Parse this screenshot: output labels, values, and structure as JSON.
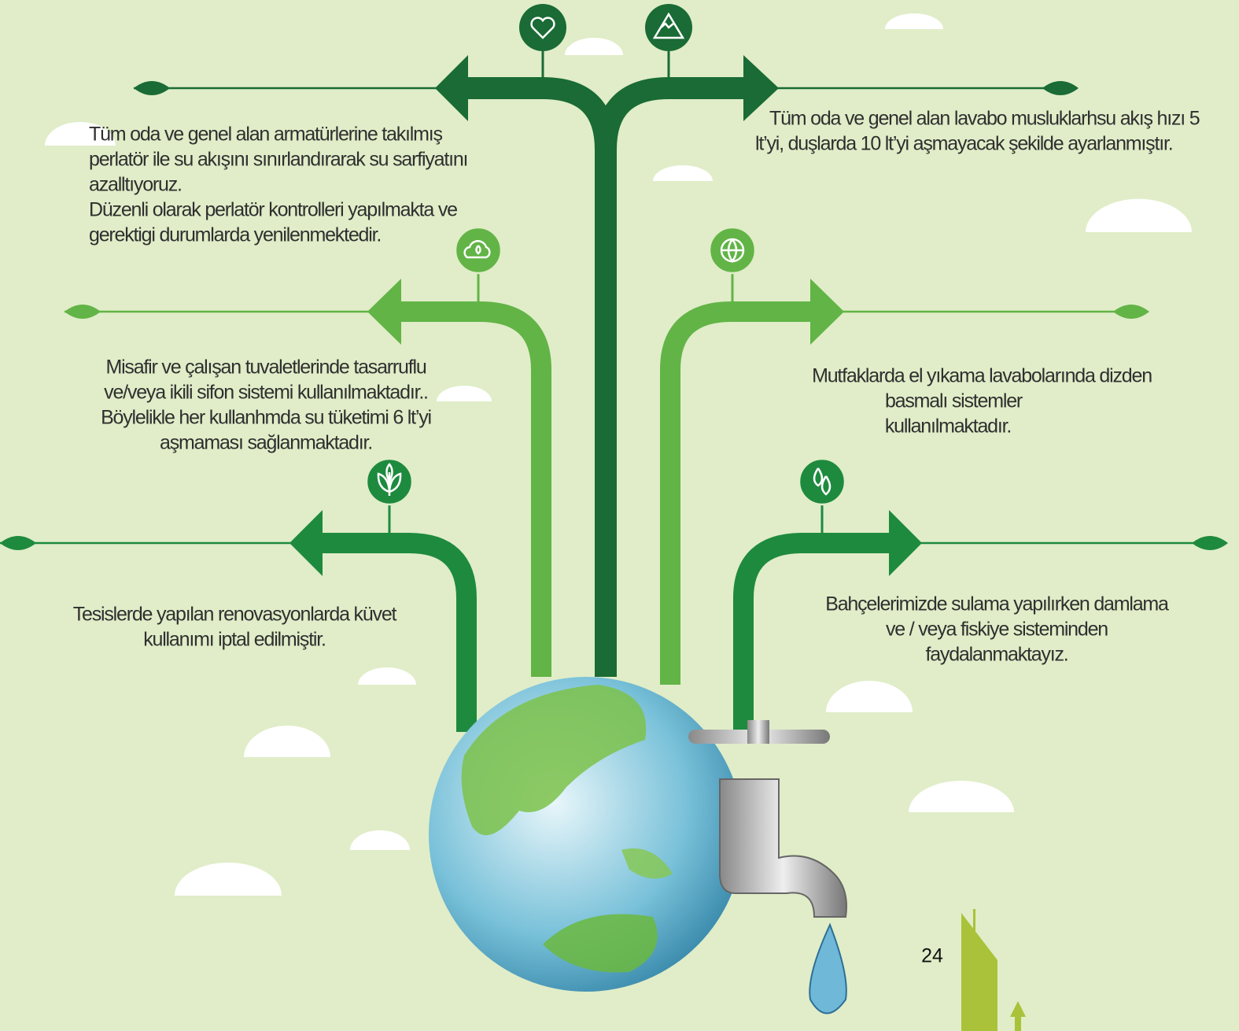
{
  "blocks": [
    {
      "lines": [
        "Tüm oda ve genel alan armatürlerine takılmış",
        "perlatör ile su akışını sınırlandırarak su sarfiyatını",
        "azalltıyoruz.",
        "Düzenli olarak perlatör kontrolleri yapılmakta ve",
        "gerektigi durumlarda yenilenmektedir."
      ]
    },
    {
      "lines": [
        "Tüm oda ve genel alan lavabo musluklarhsu akış hızı 5",
        "lt’yi, duşlarda 10 lt’yi aşmayacak şekilde ayarlanmıştır."
      ]
    },
    {
      "lines": [
        "Misafir ve çalışan tuvaletlerinde tasarruflu",
        "ve/veya ikili sifon sistemi kullanılmaktadır..",
        "Böylelikle her kullanhmda su tüketimi 6 lt’yi",
        "aşmaması sağlanmaktadır."
      ]
    },
    {
      "lines": [
        "Mutfaklarda el yıkama lavabolarında dizden",
        "basmalı sistemler",
        "kullanılmaktadır."
      ]
    },
    {
      "lines": [
        "Tesislerde yapılan renovasyonlarda küvet",
        "kullanımı iptal edilmiştir."
      ]
    },
    {
      "lines": [
        "Bahçelerimizde sulama yapılırken damlama",
        "ve / veya  fiskiye sisteminden",
        "faydalanmaktayız."
      ]
    }
  ],
  "page_number": "24"
}
